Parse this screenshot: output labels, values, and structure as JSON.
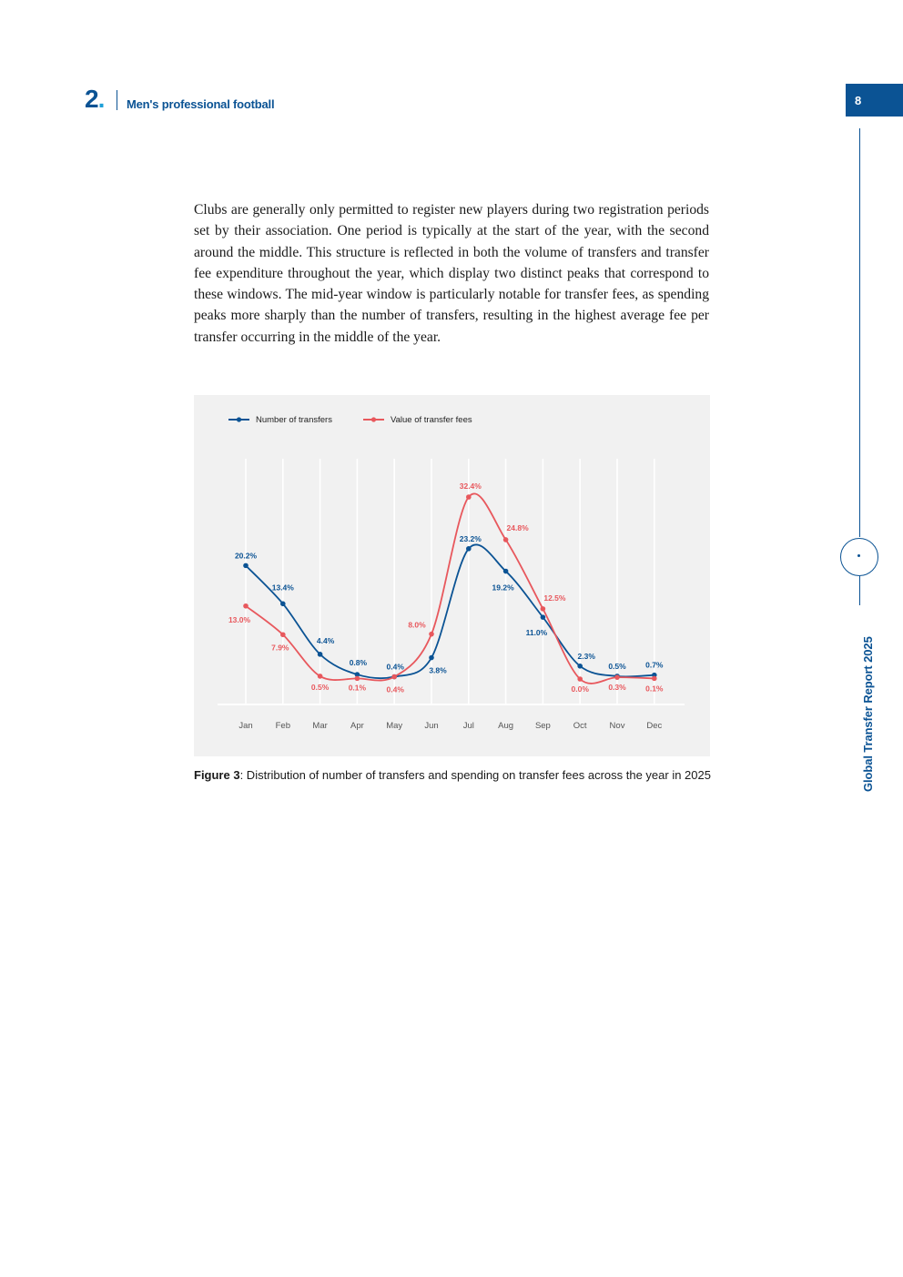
{
  "header": {
    "section_number": "2",
    "section_dot": ".",
    "section_title": "Men's professional football"
  },
  "page_number": "8",
  "side_title": "Global Transfer Report 2025",
  "body_paragraph": "Clubs are generally only permitted to register new players during two registration periods set by their association. One period is typically at the start of the year, with the second around the middle. This structure is reflected in both the volume of transfers and transfer fee expenditure throughout the year, which display two distinct peaks that correspond to these windows. The mid-year window is particularly notable for transfer fees, as spending peaks more sharply than the number of transfers, resulting in the highest average fee per transfer occurring in the middle of the year.",
  "caption": {
    "label": "Figure 3",
    "text": ": Distribution of number of transfers and spending on transfer fees across the year in 2025"
  },
  "colors": {
    "primary": "#0b5394",
    "accent": "#1ea0d8",
    "series_transfers": "#0b5394",
    "series_fees": "#e8585d",
    "chart_background": "#f1f1f1"
  },
  "chart_data": {
    "type": "line",
    "categories": [
      "Jan",
      "Feb",
      "Mar",
      "Apr",
      "May",
      "Jun",
      "Jul",
      "Aug",
      "Sep",
      "Oct",
      "Nov",
      "Dec"
    ],
    "series": [
      {
        "name": "Number of transfers",
        "color": "#0b5394",
        "values": [
          20.2,
          13.4,
          4.4,
          0.8,
          0.4,
          3.8,
          23.2,
          19.2,
          11.0,
          2.3,
          0.5,
          0.7
        ],
        "labels": [
          "20.2%",
          "13.4%",
          "4.4%",
          "0.8%",
          "0.4%",
          "3.8%",
          "23.2%",
          "19.2%",
          "11.0%",
          "2.3%",
          "0.5%",
          "0.7%"
        ]
      },
      {
        "name": "Value of transfer fees",
        "color": "#e8585d",
        "values": [
          13.0,
          7.9,
          0.5,
          0.1,
          0.4,
          8.0,
          32.4,
          24.8,
          12.5,
          0.0,
          0.3,
          0.1
        ],
        "labels": [
          "13.0%",
          "7.9%",
          "0.5%",
          "0.1%",
          "0.4%",
          "8.0%",
          "32.4%",
          "24.8%",
          "12.5%",
          "0.0%",
          "0.3%",
          "0.1%"
        ]
      }
    ],
    "legend": "top-left",
    "grid": "vertical",
    "curve": "smooth",
    "ylim": [
      0,
      35
    ]
  }
}
